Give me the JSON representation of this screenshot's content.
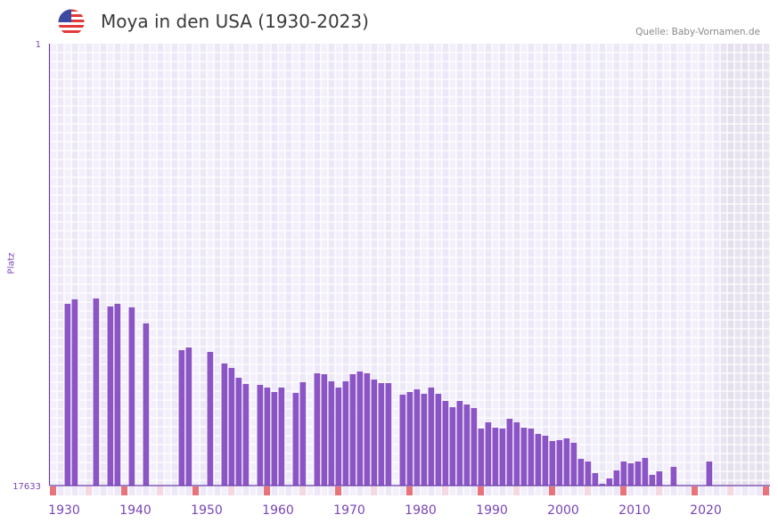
{
  "header": {
    "title": "Moya in den USA (1930-2023)",
    "source": "Quelle: Baby-Vornamen.de",
    "flag_icon": "us-flag-icon"
  },
  "chart_data": {
    "type": "bar",
    "title": "Moya in den USA (1930-2023)",
    "xlabel": "",
    "ylabel": "Platz",
    "y_axis_reversed": true,
    "ylim": [
      1,
      17633
    ],
    "ytick_labels": [
      "1",
      "17633"
    ],
    "xlim": [
      1928,
      2028
    ],
    "xtick_labels": [
      "1930",
      "1940",
      "1950",
      "1960",
      "1970",
      "1980",
      "1990",
      "2000",
      "2010",
      "2020"
    ],
    "shaded_from_year": 2022,
    "grid": true,
    "bar_color": "#8c55c6",
    "markers": {
      "strong_color": "#e8737a",
      "light_color": "#f6d8e1",
      "strong_years": [
        1928,
        1938,
        1948,
        1958,
        1968,
        1978,
        1988,
        1998,
        2008,
        2018,
        2028
      ],
      "light_years": [
        1933,
        1943,
        1953,
        1963,
        1973,
        1983,
        1993,
        2003,
        2013,
        2023
      ]
    },
    "data": [
      [
        1930,
        10381
      ],
      [
        1931,
        10202
      ],
      [
        1934,
        10167
      ],
      [
        1936,
        10487
      ],
      [
        1937,
        10381
      ],
      [
        1939,
        10522
      ],
      [
        1941,
        11162
      ],
      [
        1946,
        12229
      ],
      [
        1947,
        12122
      ],
      [
        1950,
        12300
      ],
      [
        1952,
        12762
      ],
      [
        1953,
        12940
      ],
      [
        1954,
        13331
      ],
      [
        1955,
        13580
      ],
      [
        1957,
        13615
      ],
      [
        1958,
        13722
      ],
      [
        1959,
        13899
      ],
      [
        1960,
        13722
      ],
      [
        1962,
        13935
      ],
      [
        1963,
        13508
      ],
      [
        1965,
        13153
      ],
      [
        1966,
        13188
      ],
      [
        1967,
        13473
      ],
      [
        1968,
        13722
      ],
      [
        1969,
        13473
      ],
      [
        1970,
        13188
      ],
      [
        1971,
        13082
      ],
      [
        1972,
        13153
      ],
      [
        1973,
        13402
      ],
      [
        1974,
        13544
      ],
      [
        1975,
        13544
      ],
      [
        1977,
        14006
      ],
      [
        1978,
        13899
      ],
      [
        1979,
        13793
      ],
      [
        1980,
        13971
      ],
      [
        1981,
        13722
      ],
      [
        1982,
        13971
      ],
      [
        1983,
        14256
      ],
      [
        1984,
        14505
      ],
      [
        1985,
        14256
      ],
      [
        1986,
        14398
      ],
      [
        1987,
        14541
      ],
      [
        1988,
        15358
      ],
      [
        1989,
        15109
      ],
      [
        1990,
        15323
      ],
      [
        1991,
        15358
      ],
      [
        1992,
        14966
      ],
      [
        1993,
        15109
      ],
      [
        1994,
        15323
      ],
      [
        1995,
        15358
      ],
      [
        1996,
        15571
      ],
      [
        1997,
        15642
      ],
      [
        1998,
        15855
      ],
      [
        1999,
        15820
      ],
      [
        2000,
        15749
      ],
      [
        2001,
        15926
      ],
      [
        2002,
        16566
      ],
      [
        2003,
        16673
      ],
      [
        2004,
        17135
      ],
      [
        2005,
        17562
      ],
      [
        2006,
        17349
      ],
      [
        2007,
        17029
      ],
      [
        2008,
        16673
      ],
      [
        2009,
        16744
      ],
      [
        2010,
        16673
      ],
      [
        2011,
        16531
      ],
      [
        2012,
        17206
      ],
      [
        2013,
        17064
      ],
      [
        2015,
        16886
      ],
      [
        2020,
        16673
      ]
    ]
  }
}
